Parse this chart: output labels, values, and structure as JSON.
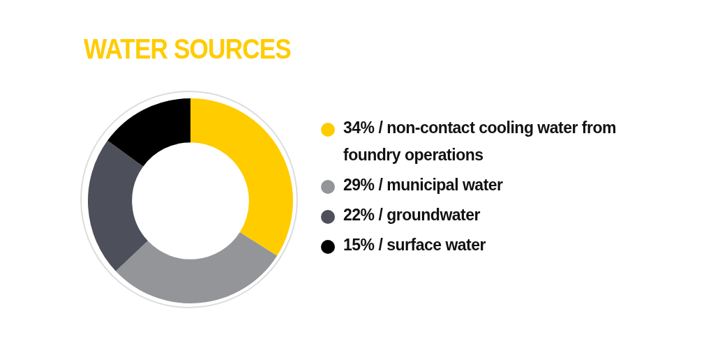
{
  "chart_data": {
    "type": "donut",
    "title": "WATER SOURCES",
    "categories": [
      "34% / non-contact cooling water from foundry operations",
      "29% / municipal water",
      "22% / groundwater",
      "15% / surface water"
    ],
    "values": [
      34,
      29,
      22,
      15
    ],
    "colors": [
      "#ffcc00",
      "#939598",
      "#4d4f5a",
      "#000000"
    ],
    "legend": "right"
  }
}
